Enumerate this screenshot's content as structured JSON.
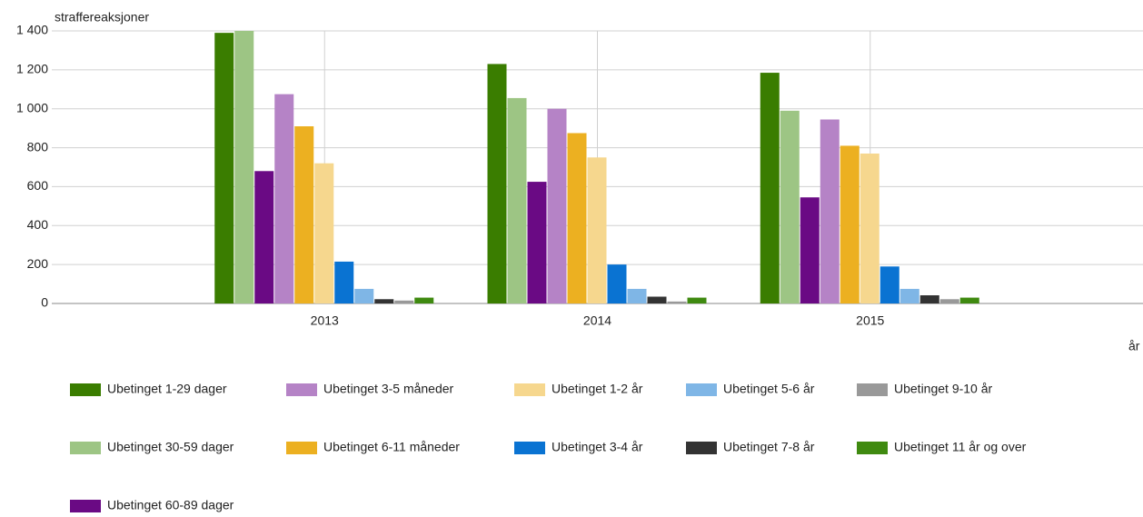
{
  "chart_data": {
    "type": "bar",
    "y_label": "straffereaksjoner",
    "x_label": "år",
    "categories": [
      "2013",
      "2014",
      "2015"
    ],
    "series": [
      {
        "name": "Ubetinget 1-29 dager",
        "color": "#3a7d00",
        "values": [
          1390,
          1230,
          1185
        ]
      },
      {
        "name": "Ubetinget 30-59 dager",
        "color": "#9dc584",
        "values": [
          1400,
          1055,
          990
        ]
      },
      {
        "name": "Ubetinget 60-89 dager",
        "color": "#6a0a84",
        "values": [
          680,
          625,
          545
        ]
      },
      {
        "name": "Ubetinget 3-5 måneder",
        "color": "#b583c6",
        "values": [
          1075,
          1000,
          945
        ]
      },
      {
        "name": "Ubetinget 6-11 måneder",
        "color": "#ecb021",
        "values": [
          910,
          875,
          810
        ]
      },
      {
        "name": "Ubetinget 1-2 år",
        "color": "#f6d78e",
        "values": [
          720,
          750,
          770
        ]
      },
      {
        "name": "Ubetinget 3-4 år",
        "color": "#0a73d2",
        "values": [
          215,
          200,
          190
        ]
      },
      {
        "name": "Ubetinget 5-6 år",
        "color": "#7fb6e6",
        "values": [
          75,
          75,
          75
        ]
      },
      {
        "name": "Ubetinget 7-8 år",
        "color": "#333333",
        "values": [
          22,
          35,
          42
        ]
      },
      {
        "name": "Ubetinget 9-10 år",
        "color": "#999999",
        "values": [
          15,
          10,
          22
        ]
      },
      {
        "name": "Ubetinget 11 år og over",
        "color": "#3f8a10",
        "values": [
          30,
          30,
          30
        ]
      }
    ],
    "ylim": [
      0,
      1400
    ],
    "yticks": [
      0,
      200,
      400,
      600,
      800,
      {
        "value": 1000,
        "label": "1 000"
      },
      {
        "value": 1200,
        "label": "1 200"
      },
      {
        "value": 1400,
        "label": "1 400"
      }
    ],
    "grid": true
  }
}
